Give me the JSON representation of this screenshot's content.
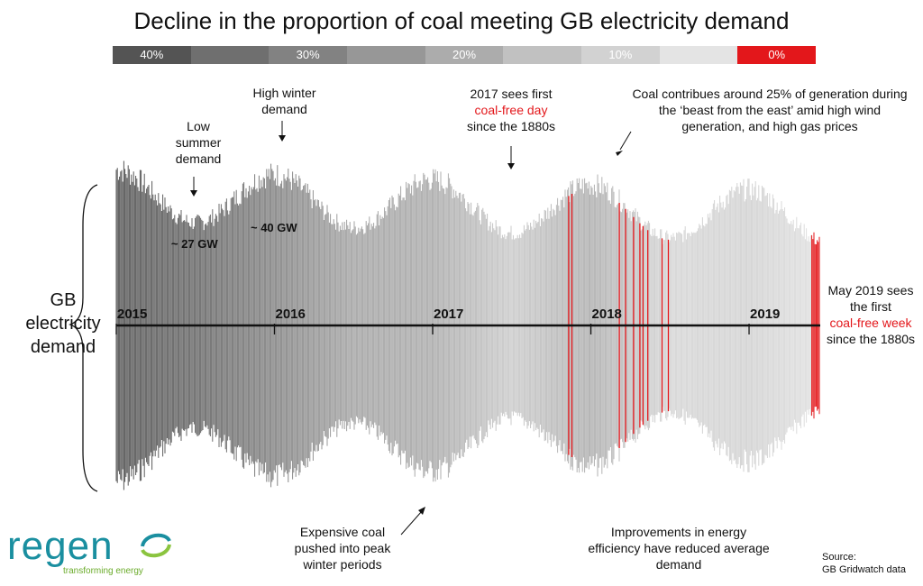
{
  "chart_data": {
    "type": "area",
    "title": "Decline in the proportion of coal meeting GB electricity demand",
    "legend": {
      "labels": [
        "40%",
        "",
        "30%",
        "",
        "20%",
        "",
        "10%",
        "",
        "0%"
      ],
      "colors": [
        "#545454",
        "#6f6f6f",
        "#828282",
        "#979797",
        "#acacac",
        "#c1c1c1",
        "#d2d2d2",
        "#e4e4e4",
        "#e3171b"
      ]
    },
    "x_years": [
      "2015",
      "2016",
      "2017",
      "2018",
      "2019"
    ],
    "x_range": [
      2015.0,
      2019.45
    ],
    "y_label": "GB electricity demand",
    "demand_levels_gw": {
      "summer_low": 27,
      "winter_high": 40
    },
    "coal_share_pct": [
      {
        "year": 2015.0,
        "pct": 40
      },
      {
        "year": 2015.5,
        "pct": 35
      },
      {
        "year": 2016.0,
        "pct": 27
      },
      {
        "year": 2016.5,
        "pct": 18
      },
      {
        "year": 2017.0,
        "pct": 16
      },
      {
        "year": 2017.5,
        "pct": 7
      },
      {
        "year": 2018.0,
        "pct": 15
      },
      {
        "year": 2018.5,
        "pct": 4
      },
      {
        "year": 2019.0,
        "pct": 5
      },
      {
        "year": 2019.45,
        "pct": 1
      }
    ]
  },
  "annotations": {
    "low_summer": "Low summer demand",
    "high_winter": "High winter demand",
    "first_coal_free_day_pre": "2017 sees first",
    "first_coal_free_day_red": "coal-free day",
    "first_coal_free_day_post": "since the 1880s",
    "beast_from_east": "Coal contribues around 25% of generation during the ‘beast from the east’ amid high wind generation, and high gas prices",
    "gw_27": "~ 27 GW",
    "gw_40": "~ 40 GW",
    "expensive_coal": "Expensive coal pushed into peak winter periods",
    "efficiency": "Improvements in energy efficiency have reduced average demand",
    "may_2019_pre": "May 2019 sees the first",
    "may_2019_red": "coal-free week",
    "may_2019_post": "since the 1880s",
    "side_label": "GB electricity demand"
  },
  "logo": {
    "name": "regen",
    "tagline": "transforming energy"
  },
  "source": {
    "line1": "Source:",
    "line2": "GB Gridwatch data"
  }
}
